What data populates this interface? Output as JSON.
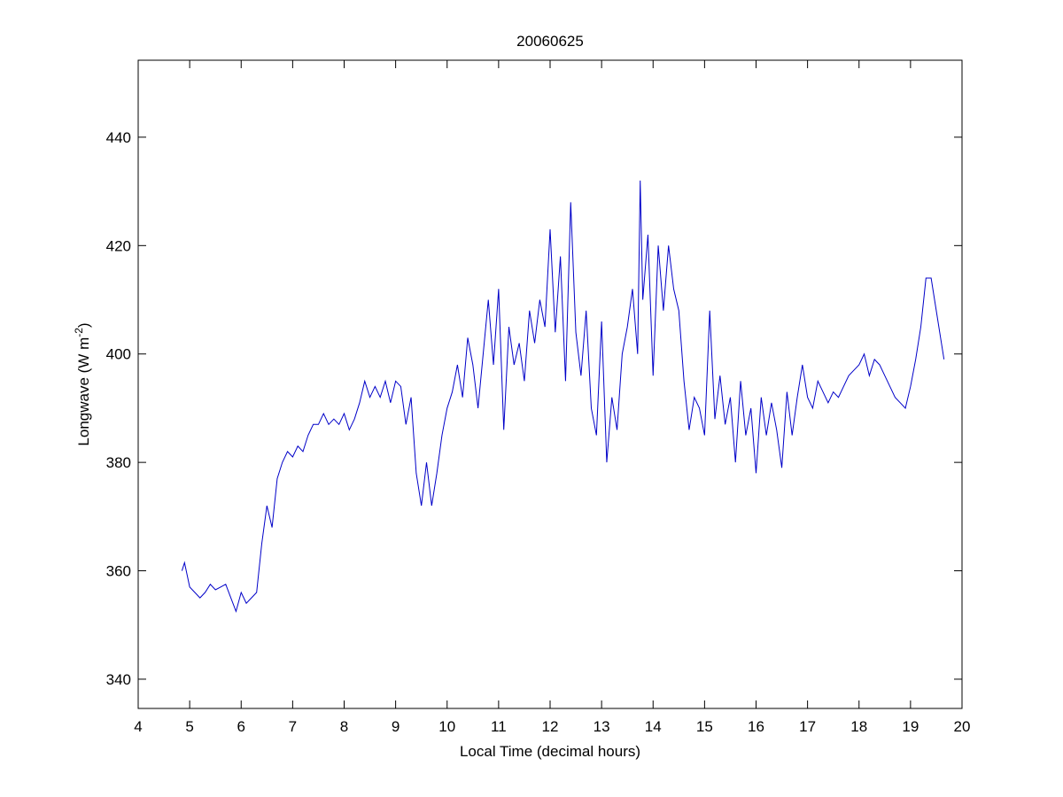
{
  "chart_data": {
    "type": "line",
    "title": "20060625",
    "xlabel": "Local Time (decimal hours)",
    "ylabel": {
      "text": "Longwave (W m",
      "sup": "-2",
      "end": ")"
    },
    "xlim": [
      4,
      20
    ],
    "xticks": [
      4,
      5,
      6,
      7,
      8,
      9,
      10,
      11,
      12,
      13,
      14,
      15,
      16,
      17,
      18,
      19,
      20
    ],
    "ylim": [
      334.6,
      454.2
    ],
    "yticks": [
      340,
      360,
      380,
      400,
      420,
      440
    ],
    "grid": false,
    "series": [
      {
        "name": "Longwave",
        "color": "#0000c8",
        "x": [
          4.85,
          4.9,
          5.0,
          5.1,
          5.2,
          5.3,
          5.4,
          5.5,
          5.6,
          5.7,
          5.8,
          5.9,
          6.0,
          6.1,
          6.2,
          6.3,
          6.4,
          6.5,
          6.6,
          6.7,
          6.8,
          6.9,
          7.0,
          7.1,
          7.2,
          7.3,
          7.4,
          7.5,
          7.6,
          7.7,
          7.8,
          7.9,
          8.0,
          8.1,
          8.2,
          8.3,
          8.4,
          8.5,
          8.6,
          8.7,
          8.8,
          8.9,
          9.0,
          9.1,
          9.2,
          9.3,
          9.4,
          9.5,
          9.6,
          9.7,
          9.8,
          9.9,
          10.0,
          10.1,
          10.2,
          10.3,
          10.4,
          10.5,
          10.6,
          10.7,
          10.8,
          10.9,
          11.0,
          11.1,
          11.2,
          11.3,
          11.4,
          11.5,
          11.6,
          11.7,
          11.8,
          11.9,
          12.0,
          12.1,
          12.2,
          12.3,
          12.4,
          12.5,
          12.6,
          12.7,
          12.8,
          12.9,
          13.0,
          13.1,
          13.2,
          13.3,
          13.4,
          13.5,
          13.6,
          13.7,
          13.75,
          13.8,
          13.9,
          14.0,
          14.1,
          14.2,
          14.3,
          14.4,
          14.5,
          14.6,
          14.7,
          14.8,
          14.9,
          15.0,
          15.1,
          15.2,
          15.3,
          15.4,
          15.5,
          15.6,
          15.7,
          15.8,
          15.9,
          16.0,
          16.1,
          16.2,
          16.3,
          16.4,
          16.5,
          16.6,
          16.7,
          16.8,
          16.9,
          17.0,
          17.1,
          17.2,
          17.3,
          17.4,
          17.5,
          17.6,
          17.7,
          17.8,
          17.9,
          18.0,
          18.1,
          18.2,
          18.3,
          18.4,
          18.5,
          18.6,
          18.7,
          18.8,
          18.9,
          19.0,
          19.1,
          19.2,
          19.3,
          19.4,
          19.5,
          19.6,
          19.65
        ],
        "values": [
          360,
          361.5,
          357,
          356,
          355,
          356,
          357.5,
          356.5,
          357,
          357.5,
          355,
          352.5,
          356,
          354,
          355,
          356,
          365,
          372,
          368,
          377,
          380,
          382,
          381,
          383,
          382,
          385,
          387,
          387,
          389,
          387,
          388,
          387,
          389,
          386,
          388,
          391,
          395,
          392,
          394,
          392,
          395,
          391,
          395,
          394,
          387,
          392,
          378,
          372,
          380,
          372,
          378,
          385,
          390,
          393,
          398,
          392,
          403,
          398,
          390,
          400,
          410,
          398,
          412,
          386,
          405,
          398,
          402,
          395,
          408,
          402,
          410,
          405,
          423,
          404,
          418,
          395,
          428,
          404,
          396,
          408,
          390,
          385,
          406,
          380,
          392,
          386,
          400,
          405,
          412,
          400,
          432,
          410,
          422,
          396,
          420,
          408,
          420,
          412,
          408,
          395,
          386,
          392,
          390,
          385,
          408,
          388,
          396,
          387,
          392,
          380,
          395,
          385,
          390,
          378,
          392,
          385,
          391,
          386,
          379,
          393,
          385,
          392,
          398,
          392,
          390,
          395,
          393,
          391,
          393,
          392,
          394,
          396,
          397,
          398,
          400,
          396,
          399,
          398,
          396,
          394,
          392,
          391,
          390,
          394,
          399,
          405,
          414,
          414,
          408,
          402,
          399
        ]
      }
    ]
  }
}
